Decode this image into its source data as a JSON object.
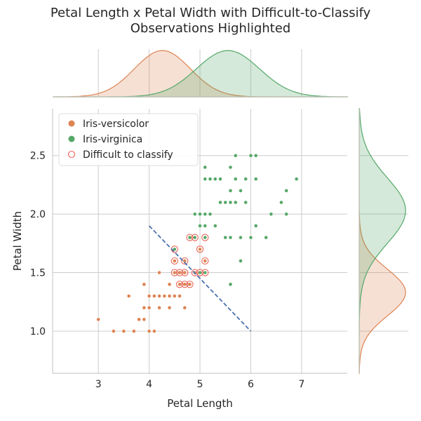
{
  "title": "Petal Length x Petal Width with Difficult-to-Classify\nObservations Highlighted",
  "chart_data": {
    "type": "scatter",
    "title": "Petal Length x Petal Width with Difficult-to-Classify Observations Highlighted",
    "xlabel": "Petal Length",
    "ylabel": "Petal Width",
    "xlim": [
      2.1,
      7.9
    ],
    "ylim": [
      0.64,
      2.9
    ],
    "xticks": [
      "3",
      "4",
      "5",
      "6",
      "7"
    ],
    "yticks": [
      "1.0",
      "1.5",
      "2.0",
      "2.5"
    ],
    "grid": true,
    "legend_position": "top-left",
    "colors": {
      "versicolor": "#dd8452",
      "virginica": "#55a868",
      "difficult": "#e8665a",
      "boundary": "#4c72b0",
      "grid": "#cccccc",
      "axis": "#cccccc"
    },
    "legend": [
      "Iris-versicolor",
      "Iris-virginica",
      "Difficult to classify"
    ],
    "series": [
      {
        "name": "Iris-versicolor",
        "points": [
          [
            3.0,
            1.1
          ],
          [
            3.3,
            1.0
          ],
          [
            3.5,
            1.0
          ],
          [
            3.6,
            1.3
          ],
          [
            3.7,
            1.0
          ],
          [
            3.8,
            1.1
          ],
          [
            3.9,
            1.1
          ],
          [
            3.9,
            1.2
          ],
          [
            3.9,
            1.4
          ],
          [
            4.0,
            1.0
          ],
          [
            4.0,
            1.2
          ],
          [
            4.0,
            1.3
          ],
          [
            4.1,
            1.0
          ],
          [
            4.1,
            1.3
          ],
          [
            4.2,
            1.2
          ],
          [
            4.2,
            1.3
          ],
          [
            4.2,
            1.5
          ],
          [
            4.3,
            1.3
          ],
          [
            4.4,
            1.2
          ],
          [
            4.4,
            1.3
          ],
          [
            4.4,
            1.4
          ],
          [
            4.5,
            1.3
          ],
          [
            4.5,
            1.5
          ],
          [
            4.5,
            1.6
          ],
          [
            4.6,
            1.3
          ],
          [
            4.6,
            1.4
          ],
          [
            4.6,
            1.5
          ],
          [
            4.7,
            1.2
          ],
          [
            4.7,
            1.4
          ],
          [
            4.7,
            1.5
          ],
          [
            4.7,
            1.6
          ],
          [
            4.8,
            1.4
          ],
          [
            4.8,
            1.8
          ],
          [
            4.9,
            1.5
          ],
          [
            5.0,
            1.7
          ],
          [
            5.1,
            1.6
          ]
        ]
      },
      {
        "name": "Iris-virginica",
        "points": [
          [
            4.5,
            1.7
          ],
          [
            4.8,
            1.8
          ],
          [
            4.9,
            1.8
          ],
          [
            4.9,
            2.0
          ],
          [
            5.0,
            1.5
          ],
          [
            5.0,
            1.9
          ],
          [
            5.0,
            2.0
          ],
          [
            5.1,
            1.5
          ],
          [
            5.1,
            1.8
          ],
          [
            5.1,
            1.9
          ],
          [
            5.1,
            2.0
          ],
          [
            5.1,
            2.3
          ],
          [
            5.1,
            2.4
          ],
          [
            5.2,
            2.0
          ],
          [
            5.2,
            2.3
          ],
          [
            5.3,
            1.9
          ],
          [
            5.3,
            2.3
          ],
          [
            5.4,
            2.1
          ],
          [
            5.4,
            2.3
          ],
          [
            5.5,
            1.8
          ],
          [
            5.5,
            2.1
          ],
          [
            5.6,
            1.4
          ],
          [
            5.6,
            1.8
          ],
          [
            5.6,
            2.1
          ],
          [
            5.6,
            2.2
          ],
          [
            5.6,
            2.4
          ],
          [
            5.7,
            2.1
          ],
          [
            5.7,
            2.3
          ],
          [
            5.7,
            2.5
          ],
          [
            5.8,
            1.6
          ],
          [
            5.8,
            1.8
          ],
          [
            5.8,
            2.2
          ],
          [
            5.9,
            2.1
          ],
          [
            5.9,
            2.3
          ],
          [
            6.0,
            1.8
          ],
          [
            6.0,
            2.5
          ],
          [
            6.1,
            1.9
          ],
          [
            6.1,
            2.3
          ],
          [
            6.1,
            2.5
          ],
          [
            6.3,
            1.8
          ],
          [
            6.4,
            2.0
          ],
          [
            6.6,
            2.1
          ],
          [
            6.7,
            2.0
          ],
          [
            6.7,
            2.2
          ],
          [
            6.9,
            2.3
          ]
        ]
      },
      {
        "name": "Difficult to classify",
        "points": [
          [
            4.5,
            1.5
          ],
          [
            4.5,
            1.6
          ],
          [
            4.5,
            1.7
          ],
          [
            4.6,
            1.4
          ],
          [
            4.6,
            1.5
          ],
          [
            4.7,
            1.4
          ],
          [
            4.7,
            1.5
          ],
          [
            4.7,
            1.6
          ],
          [
            4.8,
            1.4
          ],
          [
            4.8,
            1.8
          ],
          [
            4.9,
            1.5
          ],
          [
            4.9,
            1.8
          ],
          [
            5.0,
            1.5
          ],
          [
            5.0,
            1.7
          ],
          [
            5.1,
            1.5
          ],
          [
            5.1,
            1.6
          ],
          [
            5.1,
            1.8
          ]
        ]
      }
    ],
    "decision_boundary": {
      "x": [
        4.0,
        6.0
      ],
      "y": [
        1.9,
        1.0
      ]
    },
    "marginal_x": {
      "Iris-versicolor": {
        "mean": 4.26,
        "sd": 0.55
      },
      "Iris-virginica": {
        "mean": 5.55,
        "sd": 0.62
      }
    },
    "marginal_y": {
      "Iris-versicolor": {
        "mean": 1.33,
        "sd": 0.2
      },
      "Iris-virginica": {
        "mean": 2.03,
        "sd": 0.28
      }
    }
  }
}
